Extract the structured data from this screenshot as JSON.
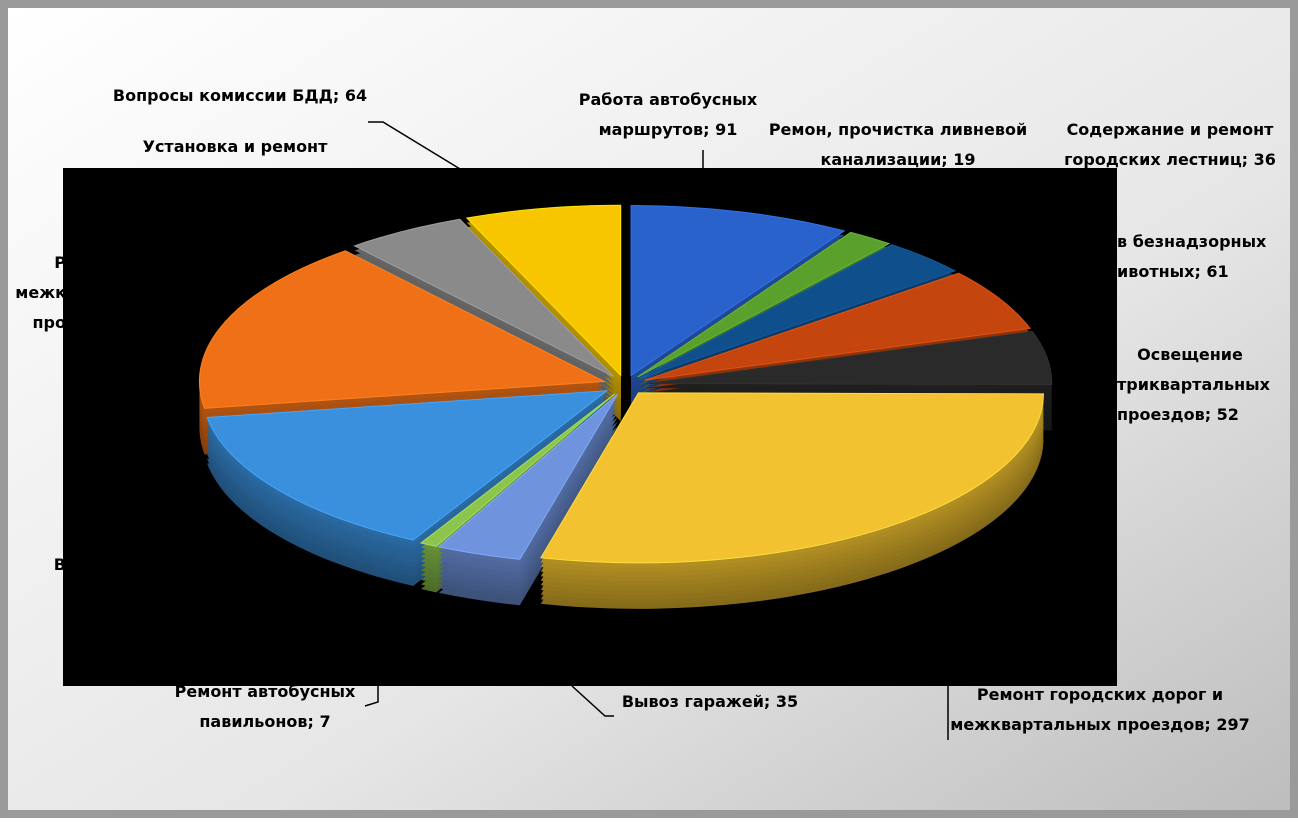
{
  "chart_data": {
    "type": "pie3d",
    "categories": [
      [
        "Работа автобусных",
        "маршрутов;"
      ],
      [
        "Ремон, прочистка ливневой",
        "канализации;"
      ],
      [
        "Содержание и ремонт",
        "городских лестниц;"
      ],
      [
        "в безнадзорных",
        "ивотных;"
      ],
      [
        "Освещение",
        "триквартальных",
        "проездов;"
      ],
      [
        "Ремонт городских дорог и",
        "межквартальных проездов;"
      ],
      [
        "Вывоз гаражей;"
      ],
      [
        "Ремонт автобусных",
        "павильонов;"
      ],
      [
        "В"
      ],
      [
        "Р",
        "межк",
        "про"
      ],
      [
        "Установка и ремонт"
      ],
      [
        "Вопросы комиссии БДД;"
      ]
    ],
    "values": [
      91,
      19,
      36,
      61,
      52,
      297,
      35,
      7,
      150,
      170,
      50,
      64
    ],
    "colors": [
      "#2a62cc",
      "#5aa02c",
      "#0f4f8c",
      "#c4460e",
      "#2a2a2a",
      "#f2c230",
      "#6f93dc",
      "#8cc44e",
      "#3a90dc",
      "#f07018",
      "#8a8a8a",
      "#f7c600"
    ]
  }
}
